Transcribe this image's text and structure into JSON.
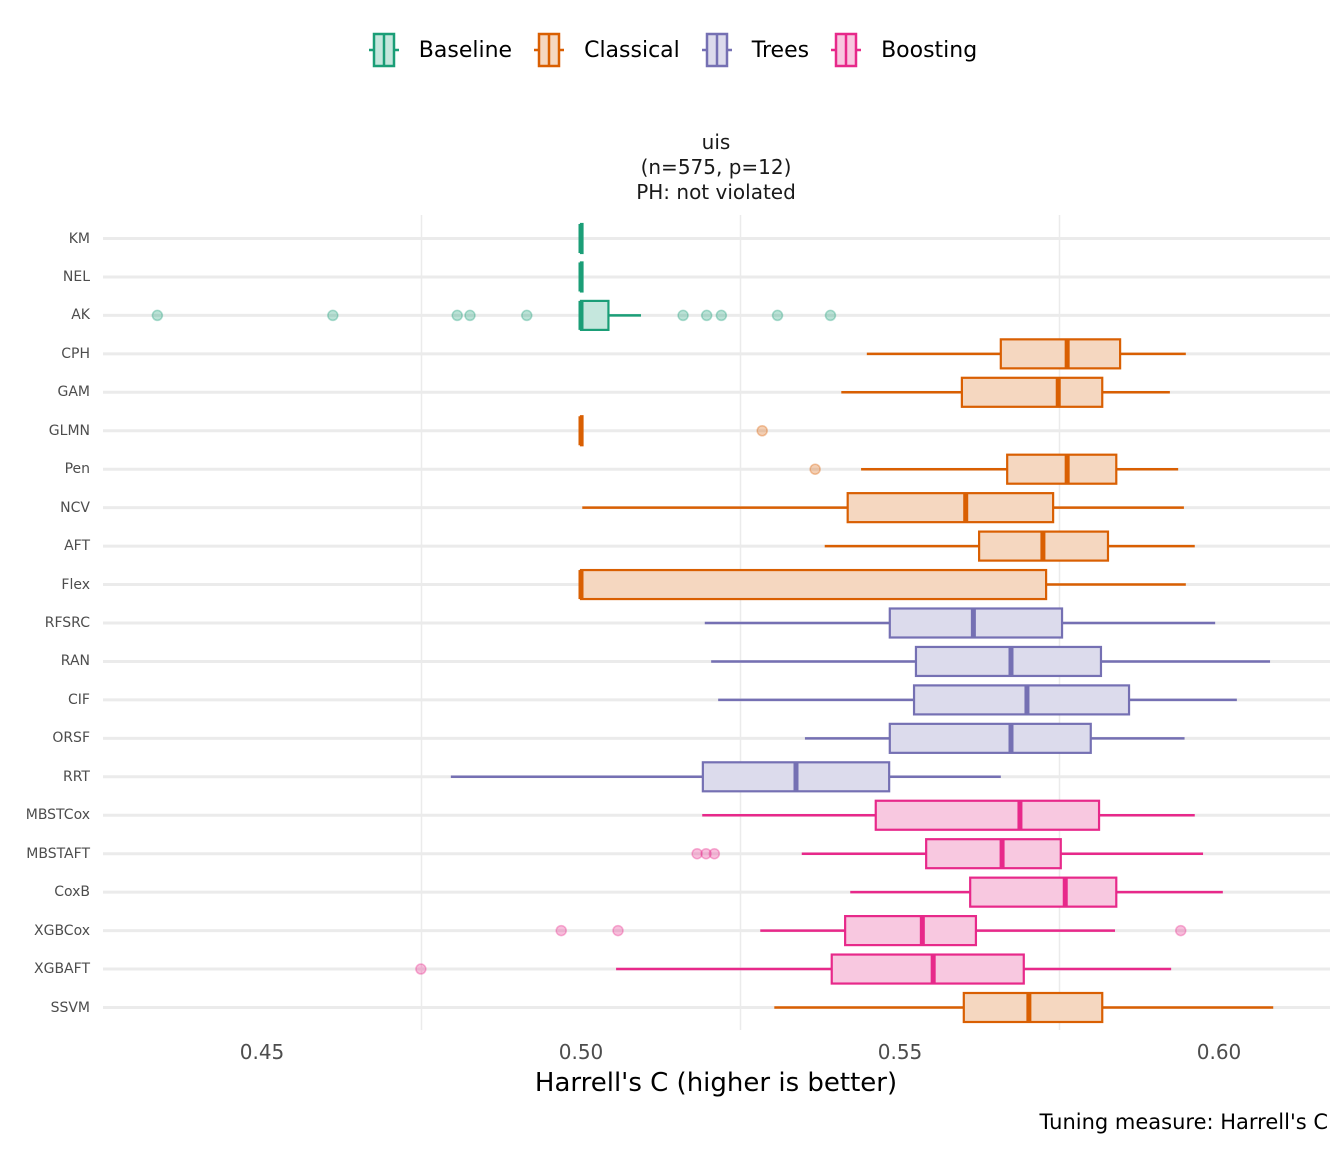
{
  "chart_data": {
    "type": "boxplot",
    "orientation": "horizontal",
    "title": [
      "uis",
      "(n=575, p=12)",
      "PH: not violated"
    ],
    "xlabel": "Harrell's C (higher is better)",
    "caption": "Tuning measure: Harrell's C",
    "xlim": [
      0.43,
      0.6175
    ],
    "xticks": [
      0.45,
      0.5,
      0.55,
      0.6
    ],
    "xtick_labels": [
      "0.45",
      "0.50",
      "0.55",
      "0.60"
    ],
    "grid": true,
    "legend_position": "top",
    "legend": [
      {
        "name": "Baseline",
        "stroke": "#1B9E77",
        "fill": "#C5E7DD"
      },
      {
        "name": "Classical",
        "stroke": "#D95F02",
        "fill": "#F5D7C0"
      },
      {
        "name": "Trees",
        "stroke": "#7570B3",
        "fill": "#DCDBEC"
      },
      {
        "name": "Boosting",
        "stroke": "#E7298A",
        "fill": "#F8C8E0"
      }
    ],
    "series": [
      {
        "name": "KM",
        "group": "Baseline",
        "min": 0.5,
        "q1": 0.5,
        "median": 0.5,
        "q3": 0.5,
        "max": 0.5,
        "outliers": []
      },
      {
        "name": "NEL",
        "group": "Baseline",
        "min": 0.5,
        "q1": 0.5,
        "median": 0.5,
        "q3": 0.5,
        "max": 0.5,
        "outliers": []
      },
      {
        "name": "AK",
        "group": "Baseline",
        "min": 0.4997,
        "q1": 0.5,
        "median": 0.5,
        "q3": 0.5043,
        "max": 0.5094,
        "outliers": [
          0.4336,
          0.4611,
          0.4806,
          0.4826,
          0.4915,
          0.516,
          0.5197,
          0.522,
          0.5308,
          0.5391
        ]
      },
      {
        "name": "CPH",
        "group": "Classical",
        "min": 0.5448,
        "q1": 0.5658,
        "median": 0.5762,
        "q3": 0.5845,
        "max": 0.5948,
        "outliers": []
      },
      {
        "name": "GAM",
        "group": "Classical",
        "min": 0.5408,
        "q1": 0.5597,
        "median": 0.5748,
        "q3": 0.5817,
        "max": 0.5923,
        "outliers": []
      },
      {
        "name": "GLMN",
        "group": "Classical",
        "min": 0.5,
        "q1": 0.5,
        "median": 0.5,
        "q3": 0.5,
        "max": 0.5,
        "outliers": [
          0.5284
        ]
      },
      {
        "name": "Pen",
        "group": "Classical",
        "min": 0.5439,
        "q1": 0.5668,
        "median": 0.5762,
        "q3": 0.5839,
        "max": 0.5936,
        "outliers": [
          0.5367
        ]
      },
      {
        "name": "NCV",
        "group": "Classical",
        "min": 0.5002,
        "q1": 0.5418,
        "median": 0.5603,
        "q3": 0.574,
        "max": 0.5945,
        "outliers": []
      },
      {
        "name": "AFT",
        "group": "Classical",
        "min": 0.5382,
        "q1": 0.5624,
        "median": 0.5724,
        "q3": 0.5826,
        "max": 0.5962,
        "outliers": []
      },
      {
        "name": "Flex",
        "group": "Classical",
        "min": 0.5,
        "q1": 0.5,
        "median": 0.5,
        "q3": 0.5729,
        "max": 0.5948,
        "outliers": []
      },
      {
        "name": "RFSRC",
        "group": "Trees",
        "min": 0.5194,
        "q1": 0.5484,
        "median": 0.5615,
        "q3": 0.5754,
        "max": 0.5994,
        "outliers": []
      },
      {
        "name": "RAN",
        "group": "Trees",
        "min": 0.5204,
        "q1": 0.5525,
        "median": 0.5674,
        "q3": 0.5815,
        "max": 0.608,
        "outliers": []
      },
      {
        "name": "CIF",
        "group": "Trees",
        "min": 0.5215,
        "q1": 0.5522,
        "median": 0.5699,
        "q3": 0.5859,
        "max": 0.6028,
        "outliers": []
      },
      {
        "name": "ORSF",
        "group": "Trees",
        "min": 0.5351,
        "q1": 0.5484,
        "median": 0.5674,
        "q3": 0.5799,
        "max": 0.5946,
        "outliers": []
      },
      {
        "name": "RRT",
        "group": "Trees",
        "min": 0.4796,
        "q1": 0.5191,
        "median": 0.5337,
        "q3": 0.5483,
        "max": 0.5658,
        "outliers": []
      },
      {
        "name": "MBSTCox",
        "group": "Boosting",
        "min": 0.519,
        "q1": 0.5462,
        "median": 0.5688,
        "q3": 0.5812,
        "max": 0.5962,
        "outliers": []
      },
      {
        "name": "MBSTAFT",
        "group": "Boosting",
        "min": 0.5346,
        "q1": 0.5541,
        "median": 0.566,
        "q3": 0.5752,
        "max": 0.5975,
        "outliers": [
          0.5182,
          0.5196,
          0.5209
        ]
      },
      {
        "name": "CoxB",
        "group": "Boosting",
        "min": 0.5422,
        "q1": 0.561,
        "median": 0.5759,
        "q3": 0.5839,
        "max": 0.6006,
        "outliers": []
      },
      {
        "name": "XGBCox",
        "group": "Boosting",
        "min": 0.5281,
        "q1": 0.5414,
        "median": 0.5535,
        "q3": 0.5619,
        "max": 0.5837,
        "outliers": [
          0.4969,
          0.5058,
          0.594
        ]
      },
      {
        "name": "XGBAFT",
        "group": "Boosting",
        "min": 0.5055,
        "q1": 0.5393,
        "median": 0.5552,
        "q3": 0.5694,
        "max": 0.5925,
        "outliers": [
          0.4749
        ]
      },
      {
        "name": "SSVM",
        "group": "Classical",
        "min": 0.5303,
        "q1": 0.56,
        "median": 0.5702,
        "q3": 0.5817,
        "max": 0.6085,
        "outliers": []
      }
    ]
  }
}
